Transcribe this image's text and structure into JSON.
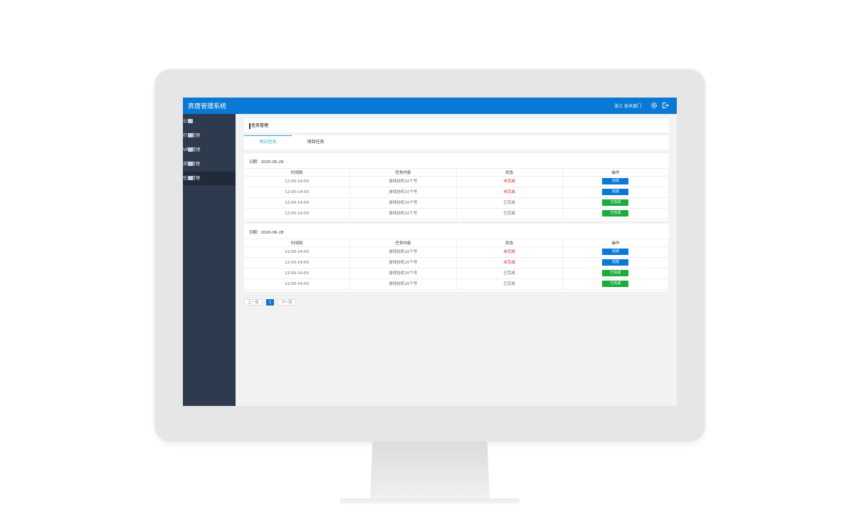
{
  "app": {
    "title": "奔唐管理系统",
    "user": "张三 技术部门"
  },
  "menu": [
    "公告",
    "打卡管理",
    "VPN管理",
    "资料管理",
    "任务管理"
  ],
  "active_menu": 4,
  "breadcrumb": "任务管理",
  "tabs": [
    "每日任务",
    "项目任务"
  ],
  "active_tab": 0,
  "table_headers": [
    "时间段",
    "任务内容",
    "状态",
    "操作"
  ],
  "days": [
    {
      "date": "日期：2020-06-29",
      "rows": [
        [
          "12:00-14:00",
          "游戏挂机10个号",
          "未完成",
          "完成"
        ],
        [
          "12:00-14:00",
          "游戏挂机10个号",
          "未完成",
          "完成"
        ],
        [
          "12:00-14:00",
          "游戏挂机10个号",
          "已完成",
          "已完成"
        ],
        [
          "12:00-14:00",
          "游戏挂机10个号",
          "已完成",
          "已完成"
        ]
      ]
    },
    {
      "date": "日期：2020-06-28",
      "rows": [
        [
          "12:00-14:00",
          "游戏挂机10个号",
          "未完成",
          "完成"
        ],
        [
          "12:00-14:00",
          "游戏挂机10个号",
          "未完成",
          "完成"
        ],
        [
          "12:00-14:00",
          "游戏挂机10个号",
          "已完成",
          "已完成"
        ],
        [
          "12:00-14:00",
          "游戏挂机10个号",
          "已完成",
          "已完成"
        ]
      ]
    }
  ],
  "pagination": {
    "prev": "上一页",
    "current": "1",
    "next": "下一页"
  }
}
